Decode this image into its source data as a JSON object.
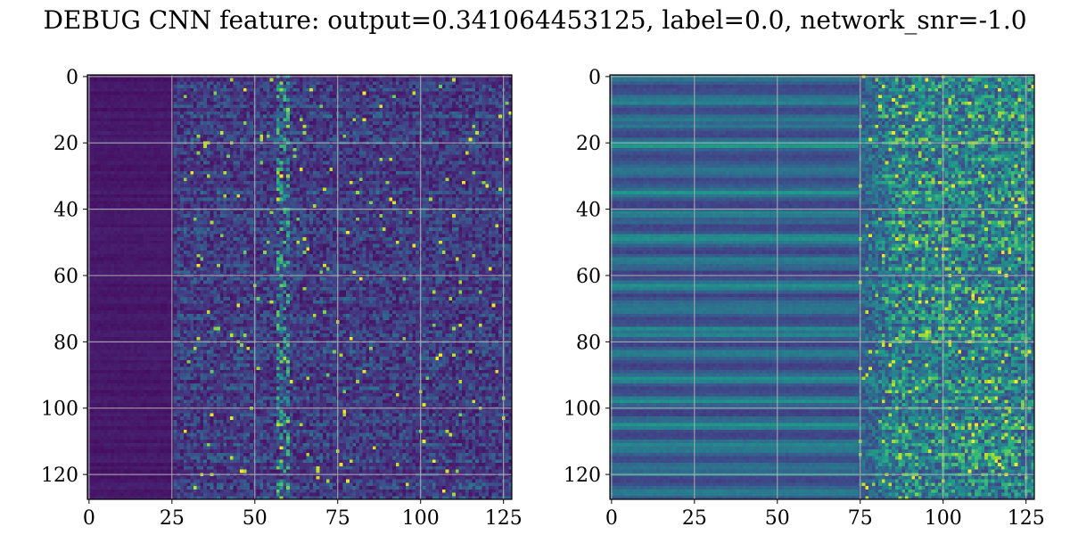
{
  "title": "DEBUG CNN feature: output=0.341064453125, label=0.0, network_snr=-1.0",
  "chart_data": [
    {
      "type": "heatmap",
      "name": "",
      "colormap": "viridis",
      "rows": 128,
      "cols": 128,
      "xlim": [
        0,
        127
      ],
      "ylim": [
        127,
        0
      ],
      "xticks": [
        0,
        25,
        50,
        75,
        100,
        125
      ],
      "yticks": [
        0,
        20,
        40,
        60,
        80,
        100,
        120
      ],
      "grid": true,
      "pattern": {
        "base_level": 0.05,
        "onset_col": 26,
        "hot_cols": [
          57,
          58,
          59,
          60
        ],
        "noise_amplitude": 0.25,
        "peak_value": 1.0
      }
    },
    {
      "type": "heatmap",
      "name": "",
      "colormap": "viridis",
      "rows": 128,
      "cols": 128,
      "xlim": [
        0,
        127
      ],
      "ylim": [
        127,
        0
      ],
      "xticks": [
        0,
        25,
        50,
        75,
        100,
        125
      ],
      "yticks": [
        0,
        20,
        40,
        60,
        80,
        100,
        120
      ],
      "grid": true,
      "pattern": {
        "base_level": 0.2,
        "onset_col": 75,
        "hot_cols": [],
        "noise_amplitude": 0.5,
        "peak_value": 1.0
      }
    }
  ]
}
